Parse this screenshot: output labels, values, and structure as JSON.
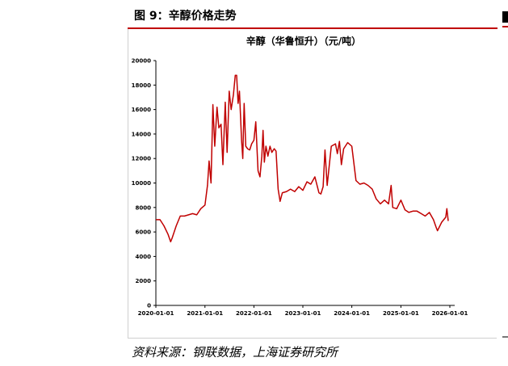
{
  "figure": {
    "title": "图 9：辛醇价格走势",
    "source": "资料来源：钢联数据，上海证券研究所"
  },
  "colors": {
    "series": "#c00000",
    "accent_line": "#c00000",
    "axis": "#000000"
  },
  "chart_data": {
    "type": "line",
    "title": "辛醇（华鲁恒升）（元/吨）",
    "xlabel": "",
    "ylabel": "",
    "ylim": [
      0,
      20000
    ],
    "yticks": [
      0,
      2000,
      4000,
      6000,
      8000,
      10000,
      12000,
      14000,
      16000,
      18000,
      20000
    ],
    "ytick_labels": [
      "0",
      "2000",
      "4000",
      "6000",
      "8000",
      "10000",
      "12000",
      "14000",
      "16000",
      "18000",
      "20000"
    ],
    "xlim": [
      "2020-01-01",
      "2026-01-01"
    ],
    "xtick_labels": [
      "2020-01-01",
      "2021-01-01",
      "2022-01-01",
      "2023-01-01",
      "2024-01-01",
      "2025-01-01",
      "2026-01-01"
    ],
    "grid": false,
    "legend": "none",
    "series": [
      {
        "x": [
          "2020-01-01",
          "2020-02-01",
          "2020-03-01",
          "2020-04-01",
          "2020-04-20",
          "2020-05-01",
          "2020-06-01",
          "2020-07-01",
          "2020-08-01",
          "2020-09-01",
          "2020-10-01",
          "2020-11-01",
          "2020-12-01",
          "2021-01-01",
          "2021-01-20",
          "2021-02-01",
          "2021-02-15",
          "2021-03-01",
          "2021-03-15",
          "2021-04-01",
          "2021-04-15",
          "2021-05-01",
          "2021-05-15",
          "2021-06-01",
          "2021-06-15",
          "2021-07-01",
          "2021-07-15",
          "2021-08-01",
          "2021-08-15",
          "2021-08-25",
          "2021-09-05",
          "2021-09-15",
          "2021-10-01",
          "2021-10-10",
          "2021-10-20",
          "2021-11-01",
          "2021-11-15",
          "2021-12-01",
          "2021-12-15",
          "2022-01-01",
          "2022-01-15",
          "2022-02-01",
          "2022-02-15",
          "2022-03-01",
          "2022-03-10",
          "2022-03-20",
          "2022-04-01",
          "2022-04-15",
          "2022-05-01",
          "2022-05-15",
          "2022-06-01",
          "2022-06-15",
          "2022-07-01",
          "2022-07-15",
          "2022-08-01",
          "2022-09-01",
          "2022-10-01",
          "2022-11-01",
          "2022-12-01",
          "2023-01-01",
          "2023-02-01",
          "2023-03-01",
          "2023-04-01",
          "2023-05-01",
          "2023-05-15",
          "2023-06-01",
          "2023-06-15",
          "2023-07-01",
          "2023-08-01",
          "2023-09-01",
          "2023-09-15",
          "2023-10-01",
          "2023-10-15",
          "2023-11-01",
          "2023-12-01",
          "2024-01-01",
          "2024-02-01",
          "2024-03-01",
          "2024-04-01",
          "2024-05-01",
          "2024-06-01",
          "2024-07-01",
          "2024-08-01",
          "2024-09-01",
          "2024-10-01",
          "2024-10-20",
          "2024-11-01",
          "2024-12-01",
          "2025-01-01",
          "2025-02-01",
          "2025-03-01",
          "2025-04-01",
          "2025-05-01",
          "2025-06-01",
          "2025-07-01",
          "2025-08-01",
          "2025-09-01",
          "2025-09-20",
          "2025-10-01",
          "2025-11-01",
          "2025-12-01",
          "2025-12-10",
          "2025-12-20"
        ],
        "y": [
          7000,
          7000,
          6500,
          5800,
          5200,
          5500,
          6500,
          7300,
          7300,
          7400,
          7500,
          7400,
          7900,
          8200,
          9800,
          11800,
          10000,
          16400,
          13000,
          16200,
          14500,
          14800,
          11500,
          16600,
          12500,
          17500,
          16000,
          17200,
          18800,
          18800,
          16500,
          17500,
          13500,
          12000,
          16500,
          13000,
          12800,
          12700,
          13200,
          13500,
          15000,
          11000,
          10500,
          12200,
          14300,
          11700,
          13000,
          12200,
          13000,
          12500,
          12800,
          12600,
          9500,
          8500,
          9200,
          9300,
          9500,
          9300,
          9700,
          9400,
          10100,
          9900,
          10500,
          9200,
          9100,
          9700,
          12700,
          9800,
          13000,
          13200,
          12400,
          13400,
          11500,
          12800,
          13300,
          13000,
          10200,
          9900,
          10000,
          9800,
          9500,
          8700,
          8300,
          8600,
          8300,
          9800,
          8000,
          7900,
          8600,
          7800,
          7600,
          7700,
          7700,
          7500,
          7300,
          7600,
          7000,
          6400,
          6100,
          6800,
          7200,
          7900,
          6900
        ]
      }
    ]
  }
}
